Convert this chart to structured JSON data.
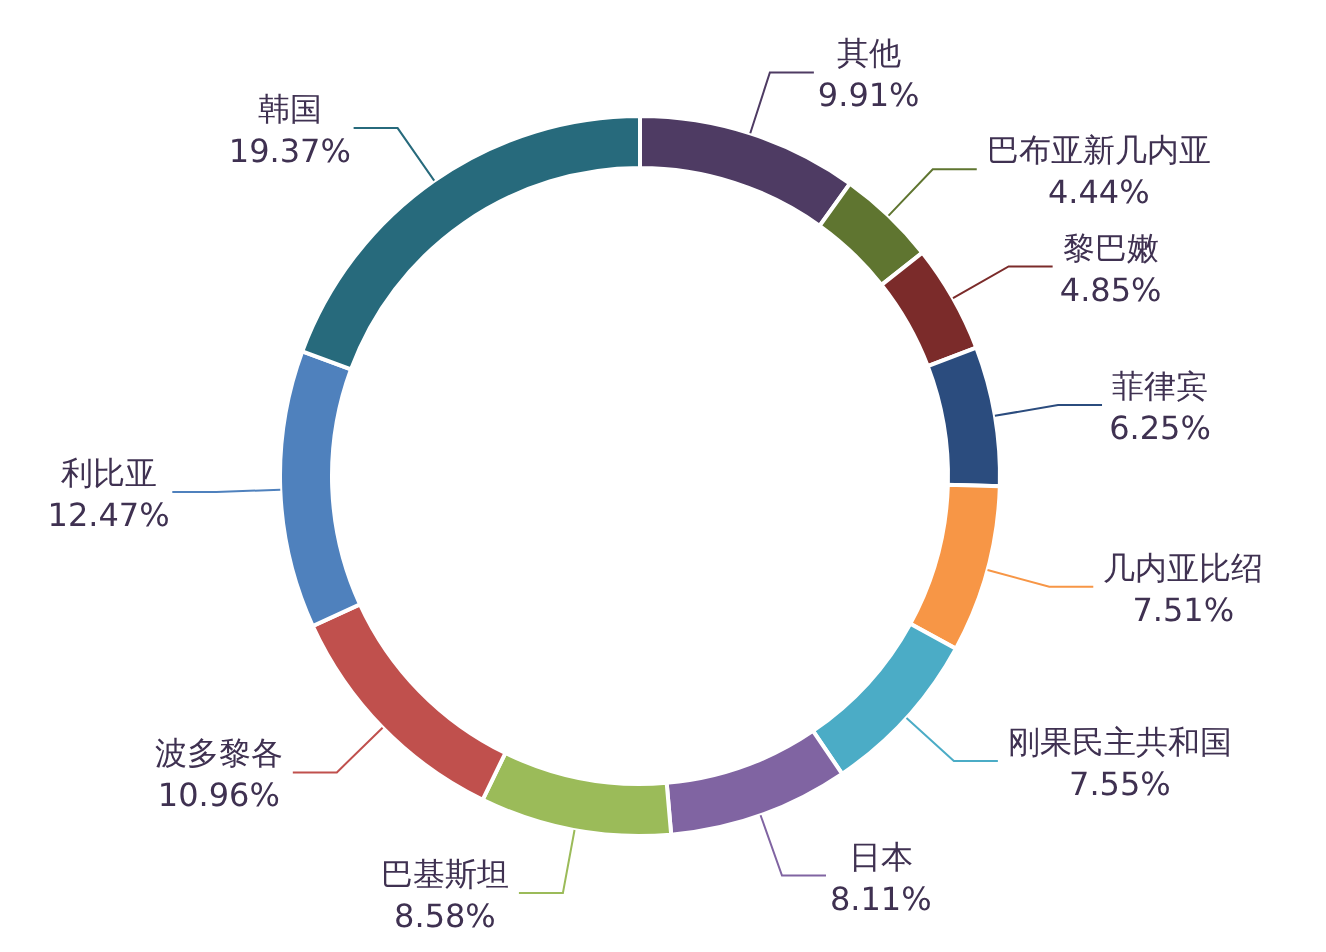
{
  "chart_data": {
    "type": "donut",
    "categories": [
      "其他",
      "巴布亚新几内亚",
      "黎巴嫩",
      "菲律宾",
      "几内亚比绍",
      "刚果民主共和国",
      "日本",
      "巴基斯坦",
      "波多黎各",
      "利比亚",
      "韩国"
    ],
    "values": [
      9.91,
      4.44,
      4.85,
      6.25,
      7.51,
      7.55,
      8.11,
      8.58,
      10.96,
      12.47,
      19.37
    ],
    "value_labels": [
      "9.91%",
      "4.44%",
      "4.85%",
      "6.25%",
      "7.51%",
      "7.55%",
      "8.11%",
      "8.58%",
      "10.96%",
      "12.47%",
      "19.37%"
    ],
    "colors": [
      "#4e3b63",
      "#5f7530",
      "#7b2b2a",
      "#2b4c7e",
      "#f79646",
      "#4bacc6",
      "#8064a2",
      "#9bbb59",
      "#c0504d",
      "#4f81bd",
      "#276a7c"
    ]
  }
}
